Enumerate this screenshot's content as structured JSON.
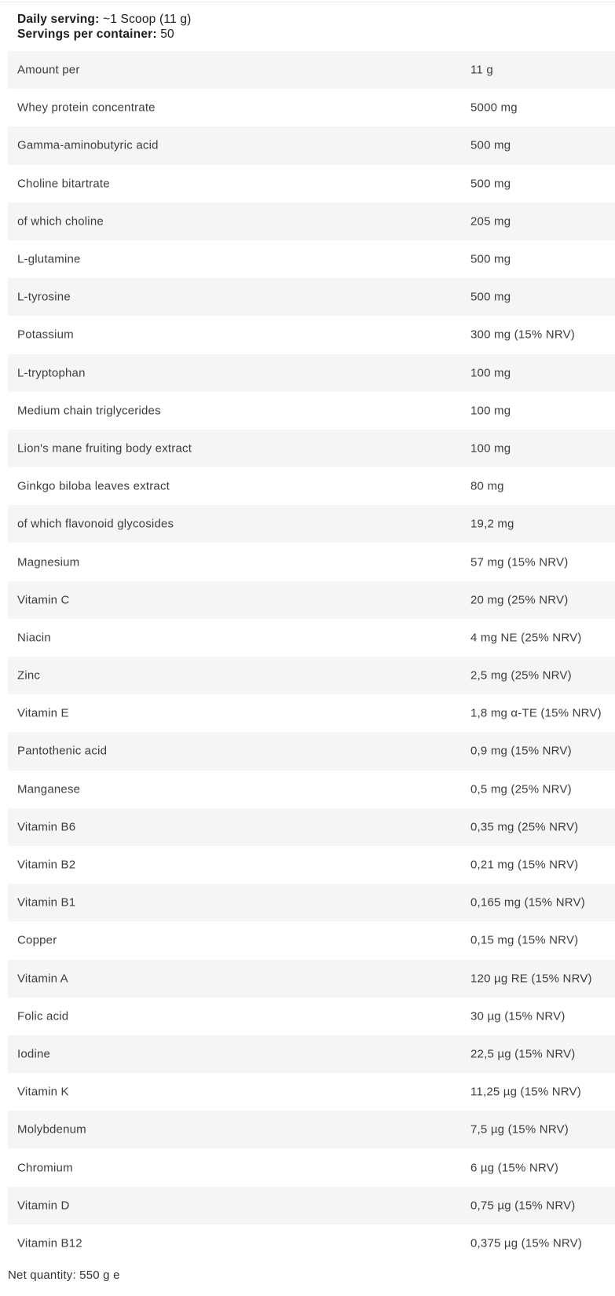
{
  "header": {
    "daily_serving_label": "Daily serving:",
    "daily_serving_value": " ~1 Scoop (11 g)",
    "servings_label": "Servings per container:",
    "servings_value": " 50"
  },
  "table": {
    "rows": [
      {
        "label": "Amount per",
        "value": "11 g"
      },
      {
        "label": "Whey protein concentrate",
        "value": "5000 mg"
      },
      {
        "label": "Gamma-aminobutyric acid",
        "value": "500 mg"
      },
      {
        "label": "Choline bitartrate",
        "value": "500 mg"
      },
      {
        "label": "of which choline",
        "value": "205 mg"
      },
      {
        "label": "L-glutamine",
        "value": "500 mg"
      },
      {
        "label": "L-tyrosine",
        "value": "500 mg"
      },
      {
        "label": "Potassium",
        "value": "300 mg (15% NRV)"
      },
      {
        "label": "L-tryptophan",
        "value": "100 mg"
      },
      {
        "label": "Medium chain triglycerides",
        "value": "100 mg"
      },
      {
        "label": "Lion's mane fruiting body extract",
        "value": "100 mg"
      },
      {
        "label": "Ginkgo biloba leaves extract",
        "value": "80 mg"
      },
      {
        "label": "of which flavonoid glycosides",
        "value": "19,2 mg"
      },
      {
        "label": "Magnesium",
        "value": "57 mg (15% NRV)"
      },
      {
        "label": "Vitamin C",
        "value": "20 mg (25% NRV)"
      },
      {
        "label": "Niacin",
        "value": "4 mg NE (25% NRV)"
      },
      {
        "label": "Zinc",
        "value": "2,5 mg (25% NRV)"
      },
      {
        "label": "Vitamin E",
        "value": "1,8 mg α-TE (15% NRV)"
      },
      {
        "label": "Pantothenic acid",
        "value": "0,9 mg (15% NRV)"
      },
      {
        "label": "Manganese",
        "value": "0,5 mg (25% NRV)"
      },
      {
        "label": "Vitamin B6",
        "value": "0,35 mg (25% NRV)"
      },
      {
        "label": "Vitamin B2",
        "value": "0,21 mg (15% NRV)"
      },
      {
        "label": "Vitamin B1",
        "value": "0,165 mg (15% NRV)"
      },
      {
        "label": "Copper",
        "value": "0,15 mg (15% NRV)"
      },
      {
        "label": "Vitamin A",
        "value": "120 µg RE (15% NRV)"
      },
      {
        "label": "Folic acid",
        "value": "30 µg (15% NRV)"
      },
      {
        "label": "Iodine",
        "value": "22,5 µg (15% NRV)"
      },
      {
        "label": "Vitamin K",
        "value": "11,25 µg (15% NRV)"
      },
      {
        "label": "Molybdenum",
        "value": "7,5 µg (15% NRV)"
      },
      {
        "label": "Chromium",
        "value": "6 µg (15% NRV)"
      },
      {
        "label": "Vitamin D",
        "value": "0,75 µg (15% NRV)"
      },
      {
        "label": "Vitamin B12",
        "value": "0,375 µg (15% NRV)"
      }
    ]
  },
  "footer": {
    "net_quantity": "Net quantity: 550 g e"
  },
  "colors": {
    "row_alt_background": "#f5f5f6",
    "body_text": "#3d3d3d",
    "header_text": "#1c1c1c",
    "hairline": "#ececec"
  }
}
